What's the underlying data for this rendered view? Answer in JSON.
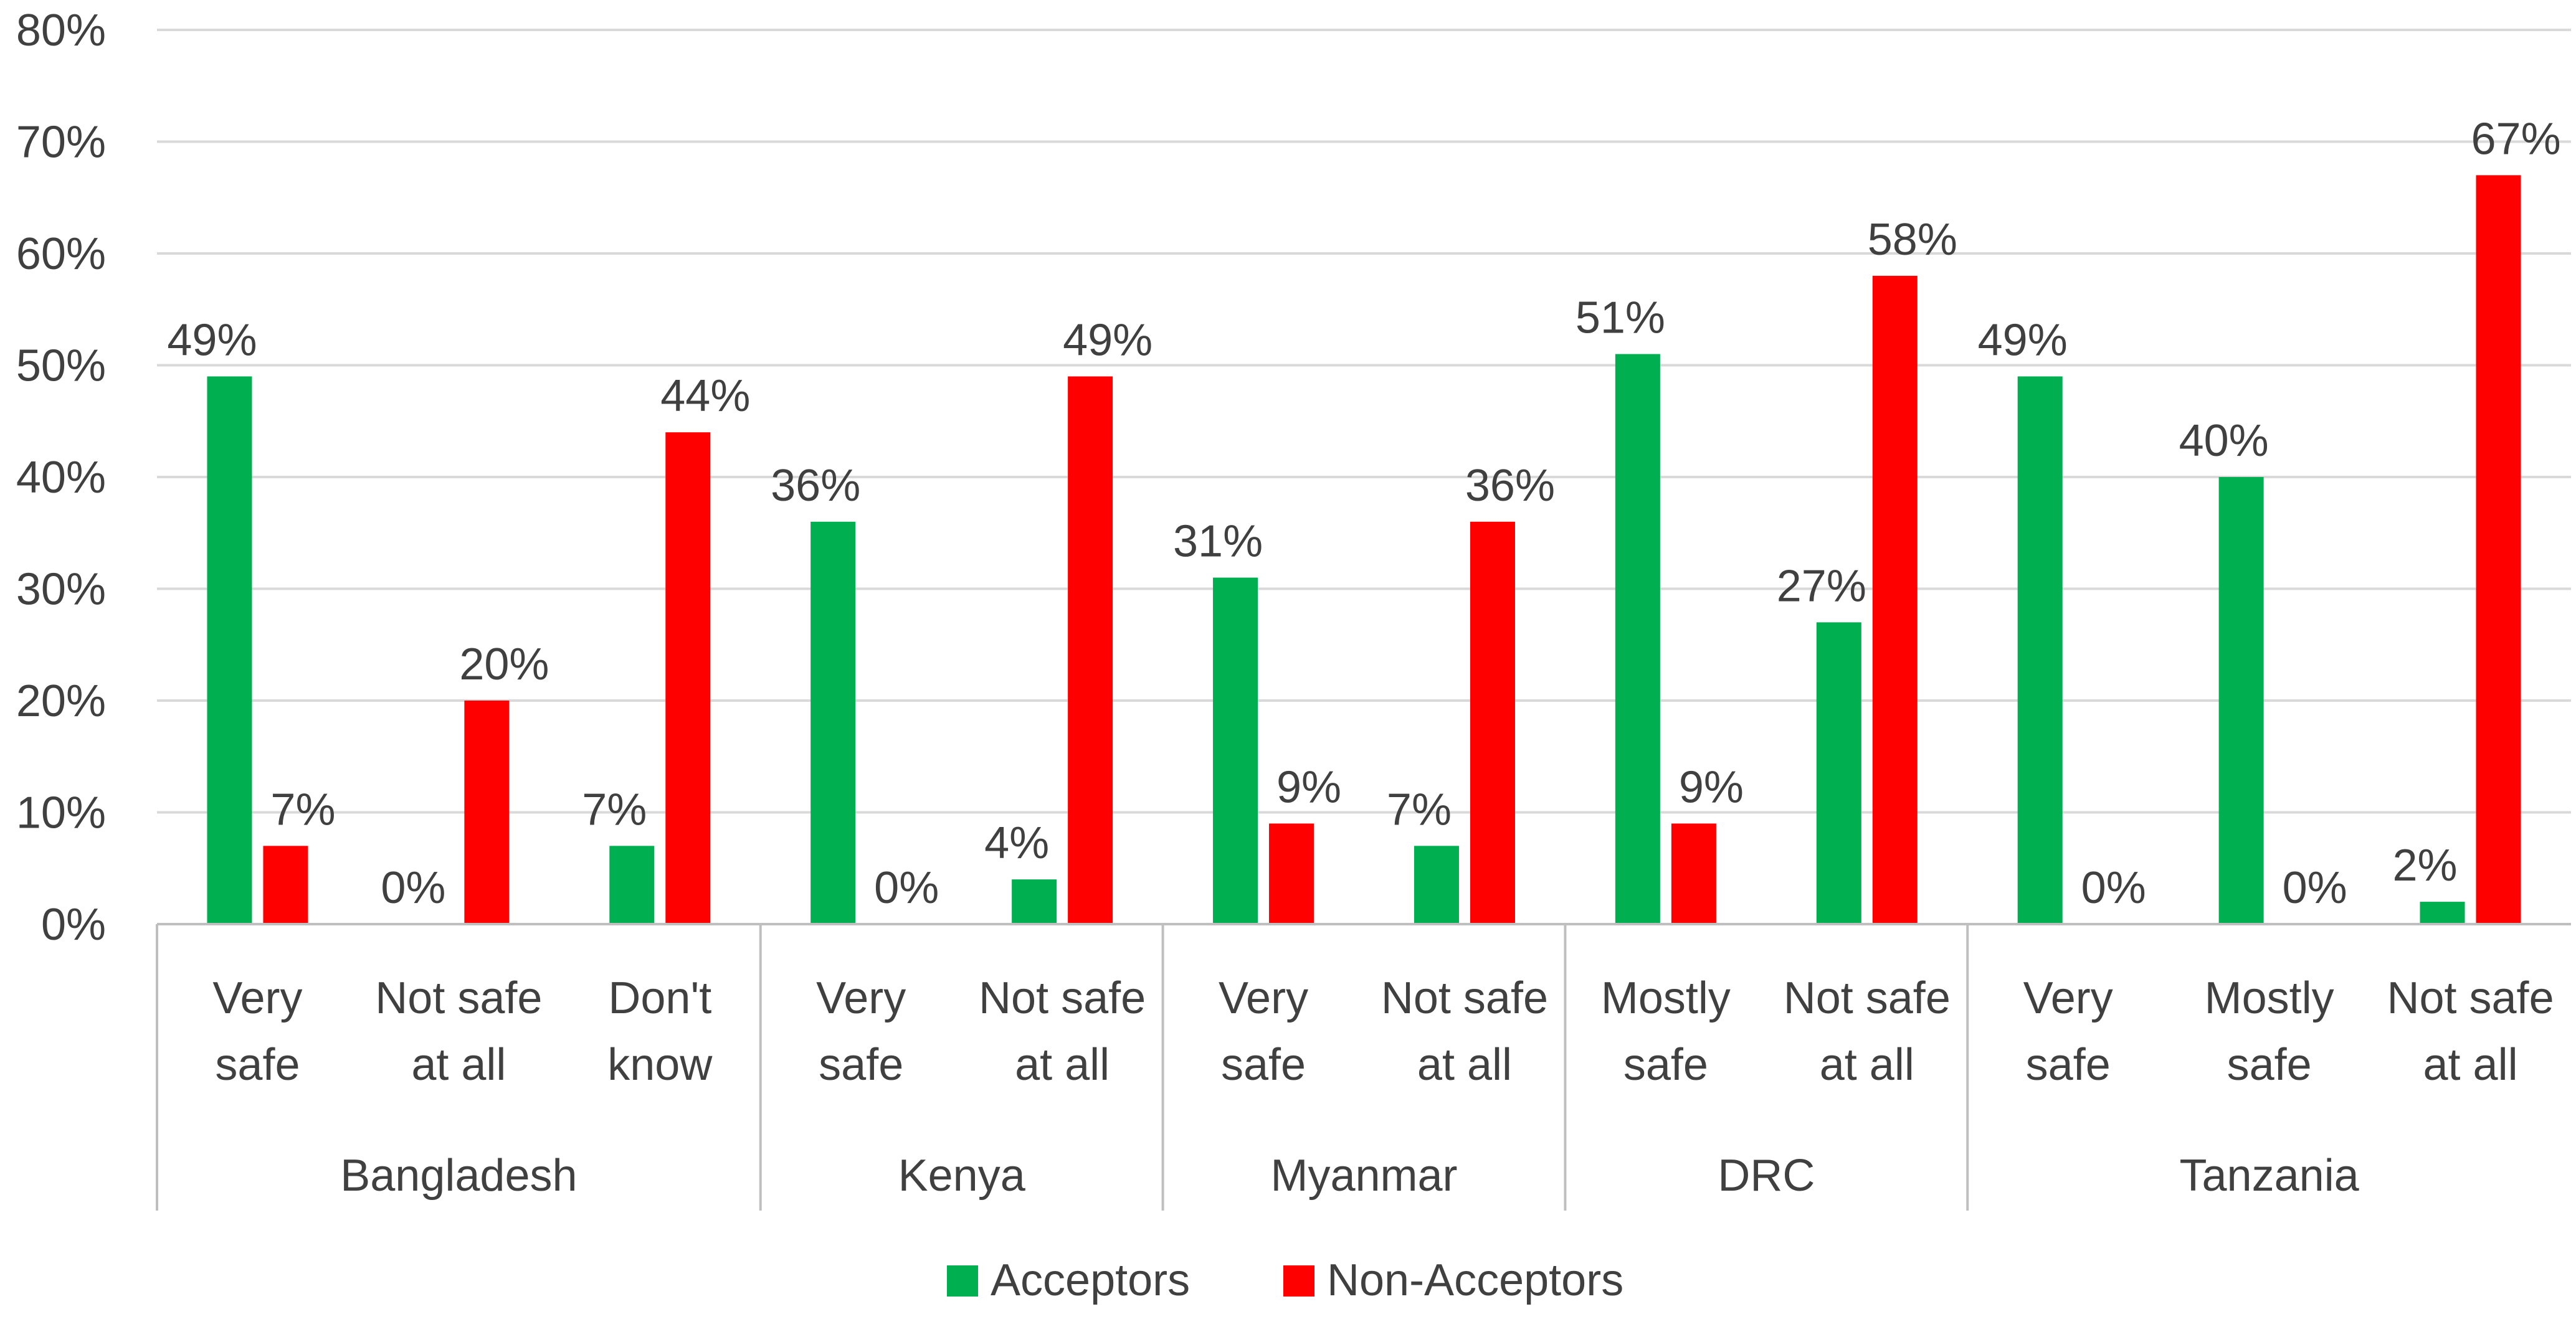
{
  "chart_data": {
    "type": "bar",
    "title": "",
    "xlabel": "",
    "ylabel": "",
    "ylim": [
      0,
      80
    ],
    "yticks": [
      "0%",
      "10%",
      "20%",
      "30%",
      "40%",
      "50%",
      "60%",
      "70%",
      "80%"
    ],
    "grid": true,
    "legend_position": "bottom",
    "groups": [
      {
        "name": "Bangladesh",
        "categories": [
          [
            "Very",
            "safe"
          ],
          [
            "Not safe",
            "at all"
          ],
          [
            "Don't",
            "know"
          ]
        ]
      },
      {
        "name": "Kenya",
        "categories": [
          [
            "Very",
            "safe"
          ],
          [
            "Not safe",
            "at all"
          ]
        ]
      },
      {
        "name": "Myanmar",
        "categories": [
          [
            "Very",
            "safe"
          ],
          [
            "Not safe",
            "at all"
          ]
        ]
      },
      {
        "name": "DRC",
        "categories": [
          [
            "Mostly",
            "safe"
          ],
          [
            "Not safe",
            "at all"
          ]
        ]
      },
      {
        "name": "Tanzania",
        "categories": [
          [
            "Very",
            "safe"
          ],
          [
            "Mostly",
            "safe"
          ],
          [
            "Not safe",
            "at all"
          ]
        ]
      }
    ],
    "series": [
      {
        "name": "Acceptors",
        "color": "#00B050",
        "values": [
          49,
          0,
          7,
          36,
          4,
          31,
          7,
          51,
          27,
          49,
          40,
          2
        ],
        "labels": [
          "49%",
          "0%",
          "7%",
          "36%",
          "4%",
          "31%",
          "7%",
          "51%",
          "27%",
          "49%",
          "40%",
          "2%"
        ]
      },
      {
        "name": "Non-Acceptors",
        "color": "#FF0000",
        "values": [
          7,
          20,
          44,
          0,
          49,
          9,
          36,
          9,
          58,
          0,
          0,
          67
        ],
        "labels": [
          "7%",
          "20%",
          "44%",
          "0%",
          "49%",
          "9%",
          "36%",
          "9%",
          "58%",
          "0%",
          "0%",
          "67%"
        ]
      }
    ],
    "colors": {
      "grid": "#D9D9D9",
      "axis": "#BFBFBF",
      "text": "#404040"
    }
  }
}
